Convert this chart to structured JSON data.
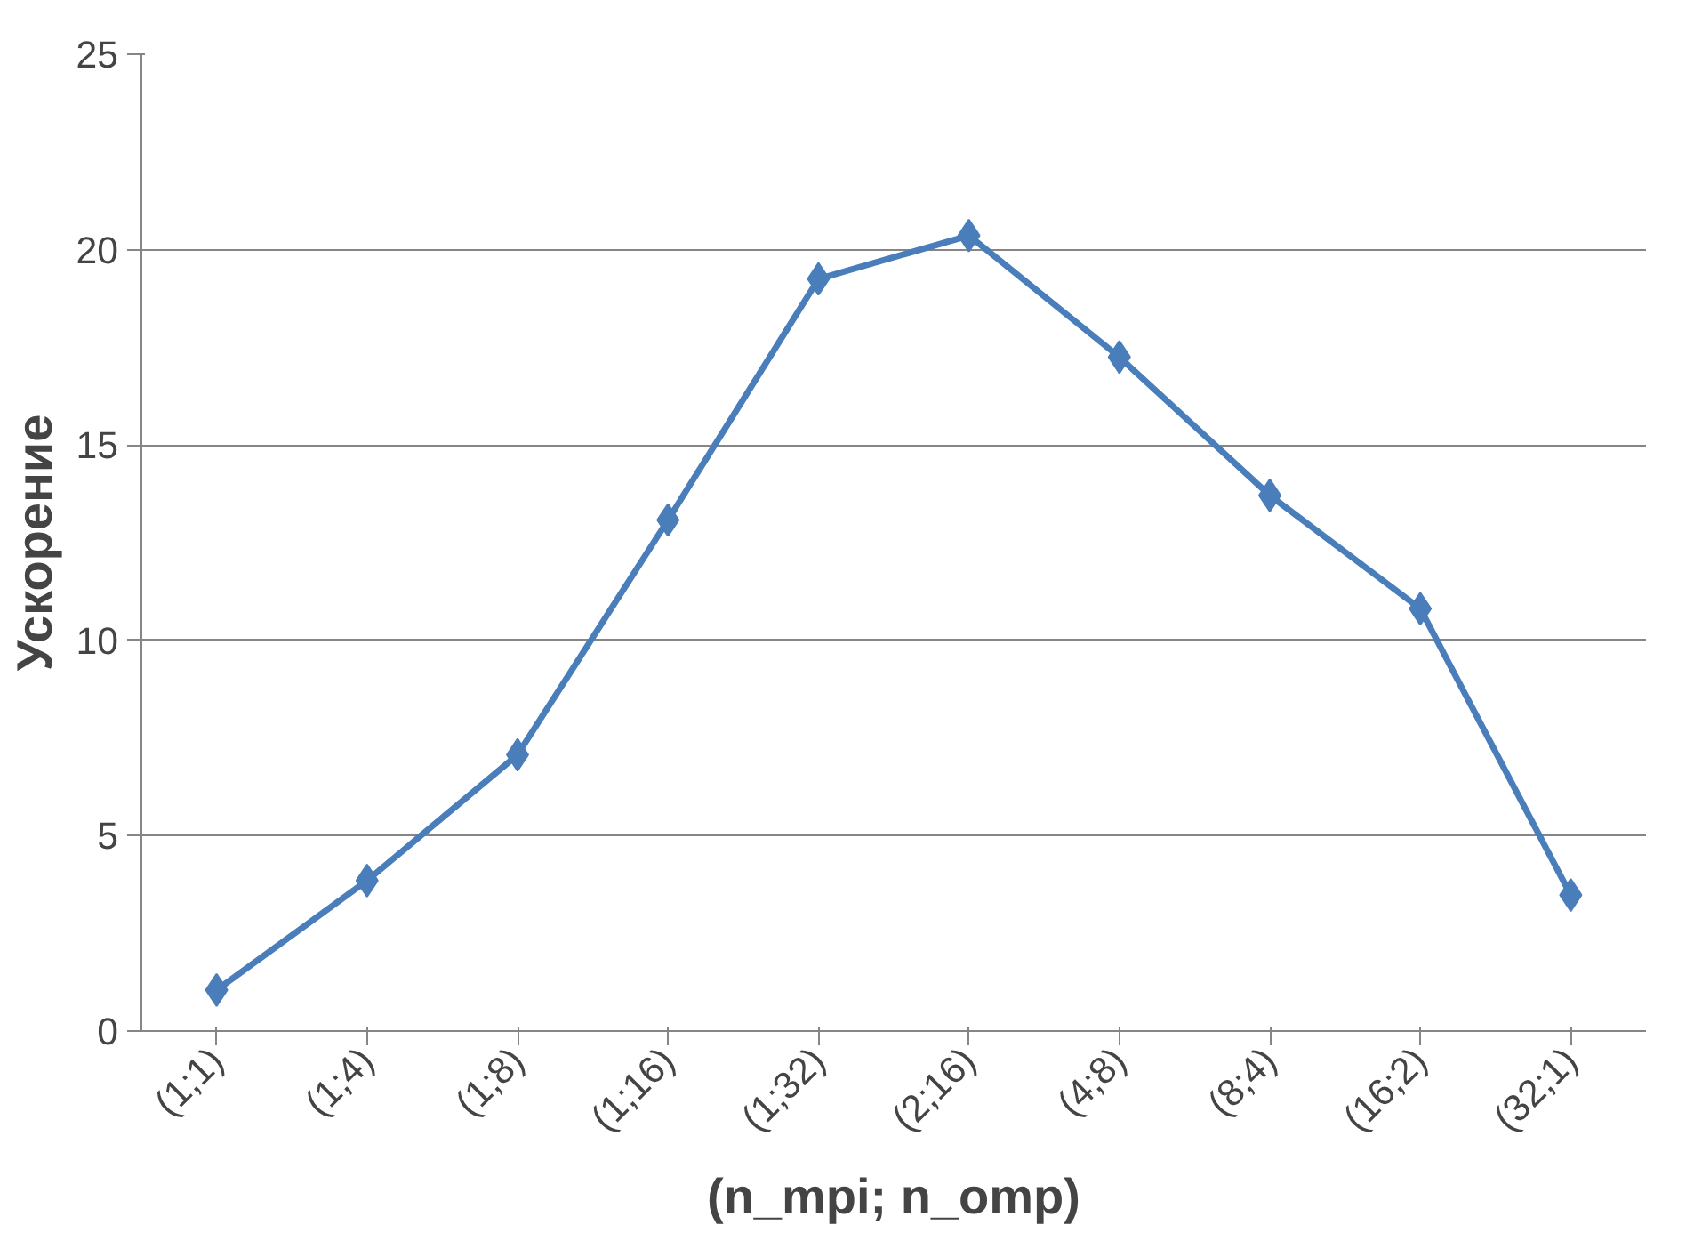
{
  "chart_data": {
    "type": "line",
    "xlabel": "(n_mpi; n_omp)",
    "ylabel": "Ускорение",
    "categories": [
      "(1;1)",
      "(1;4)",
      "(1;8)",
      "(1;16)",
      "(1;32)",
      "(2;16)",
      "(4;8)",
      "(8;4)",
      "(16;2)",
      "(32;1)"
    ],
    "series": [
      {
        "color": "#4a7ebb",
        "values": [
          1.05,
          3.85,
          7.07,
          13.08,
          19.25,
          20.36,
          17.25,
          13.71,
          10.81,
          3.48
        ]
      }
    ],
    "ylim": [
      0,
      25
    ],
    "yticks": [
      0,
      5,
      10,
      15,
      20,
      25
    ],
    "grid": "y",
    "marker": "diamond",
    "line_style": "solid"
  }
}
